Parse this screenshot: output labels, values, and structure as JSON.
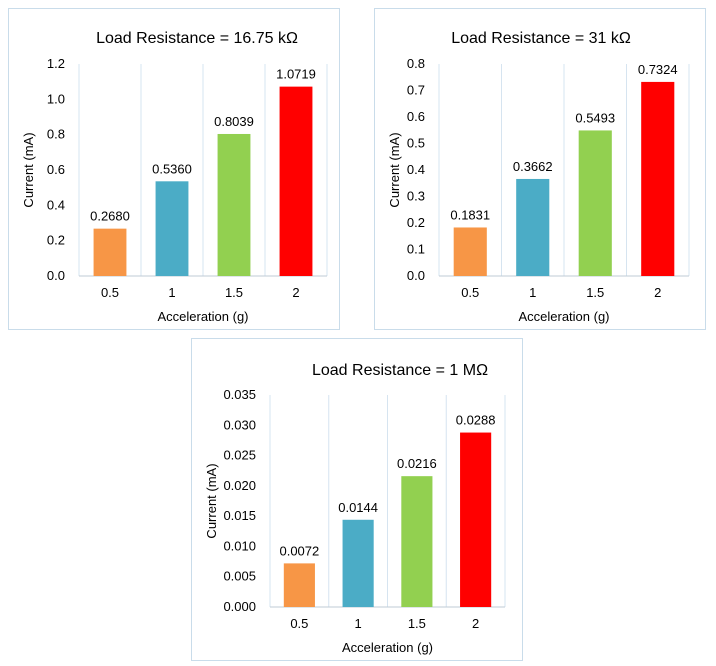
{
  "chart_data": [
    {
      "type": "bar",
      "title": "Load Resistance = 16.75 kΩ",
      "xlabel": "Acceleration (g)",
      "ylabel": "Current (mA)",
      "categories": [
        "0.5",
        "1",
        "1.5",
        "2"
      ],
      "values": [
        0.268,
        0.536,
        0.8039,
        1.0719
      ],
      "value_labels": [
        "0.2680",
        "0.5360",
        "0.8039",
        "1.0719"
      ],
      "colors": [
        "#f79646",
        "#4bacc6",
        "#92d050",
        "#ff0000"
      ],
      "ylim": [
        0,
        1.2
      ],
      "yticks": [
        "0.0",
        "0.2",
        "0.4",
        "0.6",
        "0.8",
        "1.0",
        "1.2"
      ],
      "grid": "vertical"
    },
    {
      "type": "bar",
      "title": "Load Resistance = 31 kΩ",
      "xlabel": "Acceleration (g)",
      "ylabel": "Current (mA)",
      "categories": [
        "0.5",
        "1",
        "1.5",
        "2"
      ],
      "values": [
        0.1831,
        0.3662,
        0.5493,
        0.7324
      ],
      "value_labels": [
        "0.1831",
        "0.3662",
        "0.5493",
        "0.7324"
      ],
      "colors": [
        "#f79646",
        "#4bacc6",
        "#92d050",
        "#ff0000"
      ],
      "ylim": [
        0,
        0.8
      ],
      "yticks": [
        "0.0",
        "0.1",
        "0.2",
        "0.3",
        "0.4",
        "0.5",
        "0.6",
        "0.7",
        "0.8"
      ],
      "grid": "vertical"
    },
    {
      "type": "bar",
      "title": "Load Resistance = 1 MΩ",
      "xlabel": "Acceleration (g)",
      "ylabel": "Current (mA)",
      "categories": [
        "0.5",
        "1",
        "1.5",
        "2"
      ],
      "values": [
        0.0072,
        0.0144,
        0.0216,
        0.0288
      ],
      "value_labels": [
        "0.0072",
        "0.0144",
        "0.0216",
        "0.0288"
      ],
      "colors": [
        "#f79646",
        "#4bacc6",
        "#92d050",
        "#ff0000"
      ],
      "ylim": [
        0,
        0.035
      ],
      "yticks": [
        "0.000",
        "0.005",
        "0.010",
        "0.015",
        "0.020",
        "0.025",
        "0.030",
        "0.035"
      ],
      "grid": "vertical"
    }
  ]
}
